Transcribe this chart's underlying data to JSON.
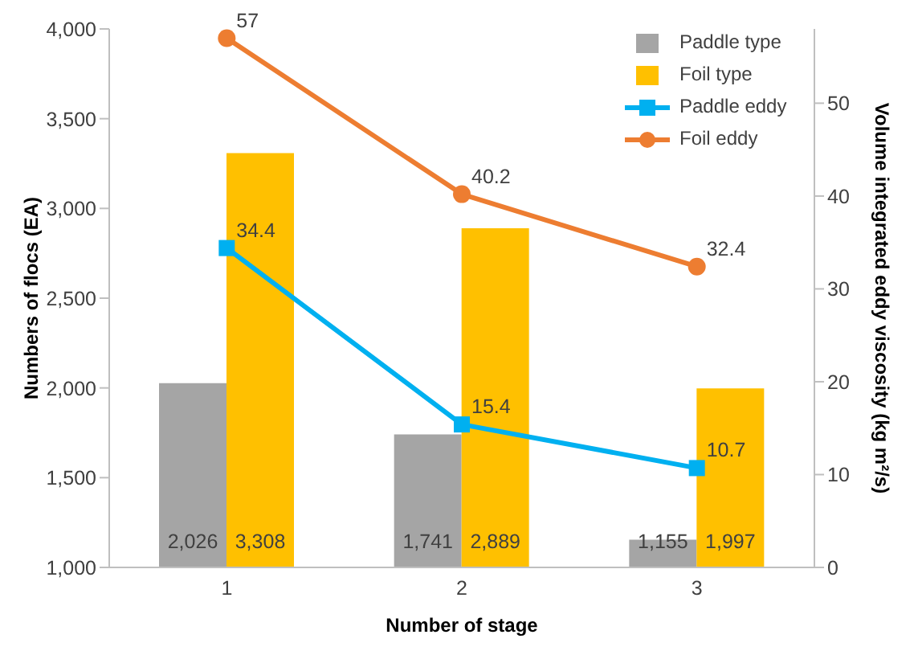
{
  "chart_data": {
    "type": "bar",
    "xlabel": "Number of stage",
    "ylabel": "Numbers  of flocs (EA)",
    "y2label": "Volume integrated eddy viscosity (kg m²/s)",
    "categories": [
      "1",
      "2",
      "3"
    ],
    "series": [
      {
        "name": "Paddle type",
        "color": "#a5a5a5",
        "values": [
          2026,
          1741,
          1155
        ],
        "value_labels": [
          "2,026",
          "1,741",
          "1,155"
        ]
      },
      {
        "name": "Foil type",
        "color": "#ffc000",
        "values": [
          3308,
          2889,
          1997
        ],
        "value_labels": [
          "3,308",
          "2,889",
          "1,997"
        ]
      },
      {
        "name": "Paddle eddy",
        "type": "line",
        "axis": "y2",
        "color": "#00b0f0",
        "marker": "square",
        "values": [
          34.4,
          15.4,
          10.7
        ],
        "value_labels": [
          "34.4",
          "15.4",
          "10.7"
        ]
      },
      {
        "name": "Foil eddy",
        "type": "line",
        "axis": "y2",
        "color": "#ed7d31",
        "marker": "circle",
        "values": [
          57,
          40.2,
          32.4
        ],
        "value_labels": [
          "57",
          "40.2",
          "32.4"
        ]
      }
    ],
    "ylim": [
      1000,
      4000
    ],
    "yticks": [
      {
        "value": 1000,
        "label": "1,000"
      },
      {
        "value": 1500,
        "label": "1,500"
      },
      {
        "value": 2000,
        "label": "2,000"
      },
      {
        "value": 2500,
        "label": "2,500"
      },
      {
        "value": 3000,
        "label": "3,000"
      },
      {
        "value": 3500,
        "label": "3,500"
      },
      {
        "value": 4000,
        "label": "4,000"
      }
    ],
    "y2lim": [
      0,
      58
    ],
    "y2ticks": [
      0,
      10,
      20,
      30,
      40,
      50
    ],
    "grid": false,
    "legend": "top right"
  }
}
